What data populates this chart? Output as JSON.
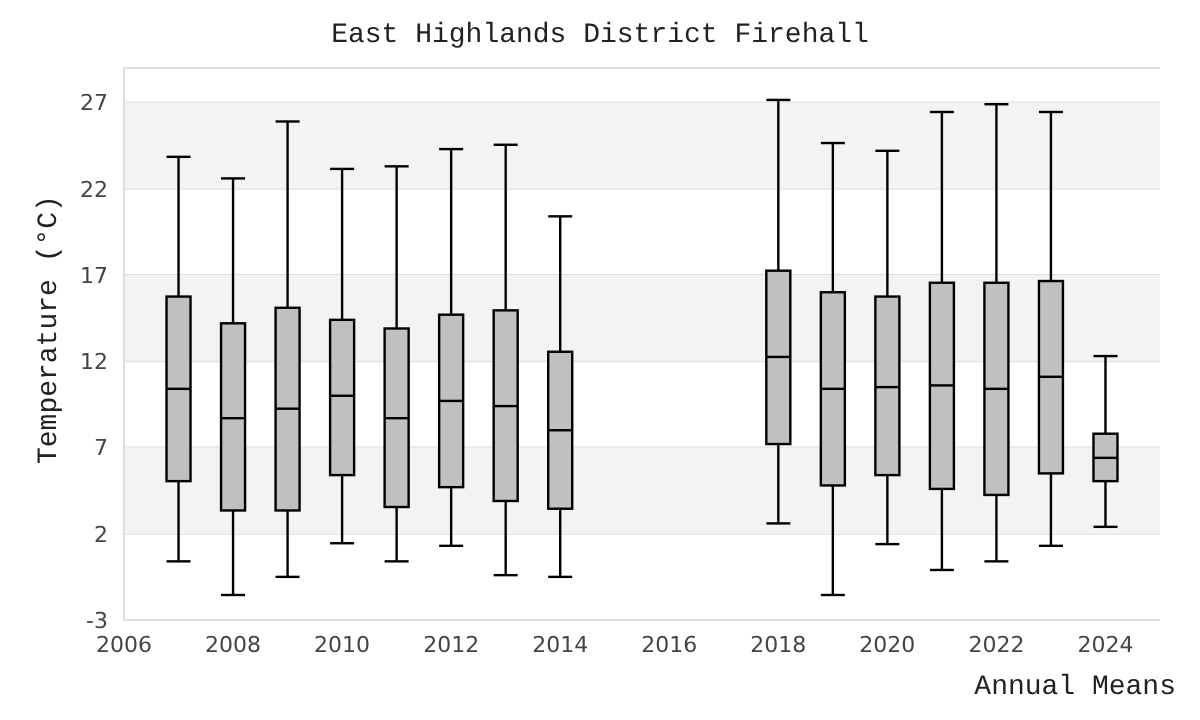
{
  "chart_data": {
    "type": "box",
    "title": "East Highlands District Firehall",
    "xlabel": "Annual Means",
    "ylabel": "Temperature (°C)",
    "x": [
      2007,
      2008,
      2009,
      2010,
      2011,
      2012,
      2013,
      2014,
      2018,
      2019,
      2020,
      2021,
      2022,
      2023,
      2024
    ],
    "color": "#c0c0c0",
    "boxes": [
      {
        "low": 0.4,
        "q1": 5.05,
        "median": 10.4,
        "q3": 15.75,
        "high": 23.85
      },
      {
        "low": -1.55,
        "q1": 3.35,
        "median": 8.7,
        "q3": 14.2,
        "high": 22.6
      },
      {
        "low": -0.5,
        "q1": 3.35,
        "median": 9.25,
        "q3": 15.1,
        "high": 25.9
      },
      {
        "low": 1.45,
        "q1": 5.4,
        "median": 10.0,
        "q3": 14.4,
        "high": 23.15
      },
      {
        "low": 0.4,
        "q1": 3.55,
        "median": 8.7,
        "q3": 13.9,
        "high": 23.3
      },
      {
        "low": 1.3,
        "q1": 4.7,
        "median": 9.7,
        "q3": 14.7,
        "high": 24.3
      },
      {
        "low": -0.4,
        "q1": 3.9,
        "median": 9.4,
        "q3": 14.95,
        "high": 24.55
      },
      {
        "low": -0.5,
        "q1": 3.45,
        "median": 8.0,
        "q3": 12.55,
        "high": 20.4
      },
      {
        "low": 2.6,
        "q1": 7.2,
        "median": 12.25,
        "q3": 17.25,
        "high": 27.15
      },
      {
        "low": -1.55,
        "q1": 4.8,
        "median": 10.4,
        "q3": 16.0,
        "high": 24.65
      },
      {
        "low": 1.4,
        "q1": 5.4,
        "median": 10.5,
        "q3": 15.75,
        "high": 24.2
      },
      {
        "low": -0.1,
        "q1": 4.6,
        "median": 10.6,
        "q3": 16.55,
        "high": 26.45
      },
      {
        "low": 0.4,
        "q1": 4.25,
        "median": 10.4,
        "q3": 16.55,
        "high": 26.9
      },
      {
        "low": 1.3,
        "q1": 5.5,
        "median": 11.1,
        "q3": 16.65,
        "high": 26.45
      },
      {
        "low": 2.4,
        "q1": 5.05,
        "median": 6.4,
        "q3": 7.8,
        "high": 12.3
      }
    ],
    "xlim": [
      2006,
      2025
    ],
    "xticks": [
      2006,
      2008,
      2010,
      2012,
      2014,
      2016,
      2018,
      2020,
      2022,
      2024
    ],
    "ylim": [
      -3,
      29
    ],
    "yticks": [
      -3,
      2,
      7,
      12,
      17,
      22,
      27
    ],
    "grid": "y"
  }
}
